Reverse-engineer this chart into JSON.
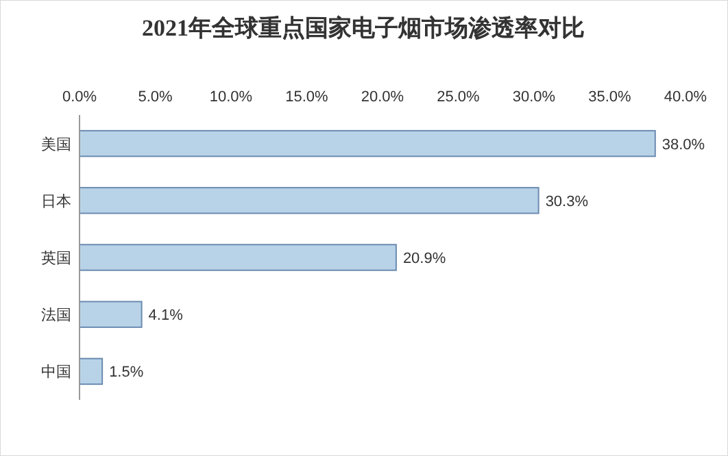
{
  "chart_data": {
    "type": "bar",
    "orientation": "horizontal",
    "title": "2021年全球重点国家电子烟市场渗透率对比",
    "categories": [
      "美国",
      "日本",
      "英国",
      "法国",
      "中国"
    ],
    "values": [
      38.0,
      30.3,
      20.9,
      4.1,
      1.5
    ],
    "value_labels": [
      "38.0%",
      "30.3%",
      "20.9%",
      "4.1%",
      "1.5%"
    ],
    "color": "#b8d3e8",
    "xlim": [
      0,
      40
    ],
    "xticks": [
      {
        "value": 0,
        "label": "0.0%"
      },
      {
        "value": 5,
        "label": "5.0%"
      },
      {
        "value": 10,
        "label": "10.0%"
      },
      {
        "value": 15,
        "label": "15.0%"
      },
      {
        "value": 20,
        "label": "20.0%"
      },
      {
        "value": 25,
        "label": "25.0%"
      },
      {
        "value": 30,
        "label": "30.0%"
      },
      {
        "value": 35,
        "label": "35.0%"
      },
      {
        "value": 40,
        "label": "40.0%"
      }
    ],
    "grid": false
  }
}
